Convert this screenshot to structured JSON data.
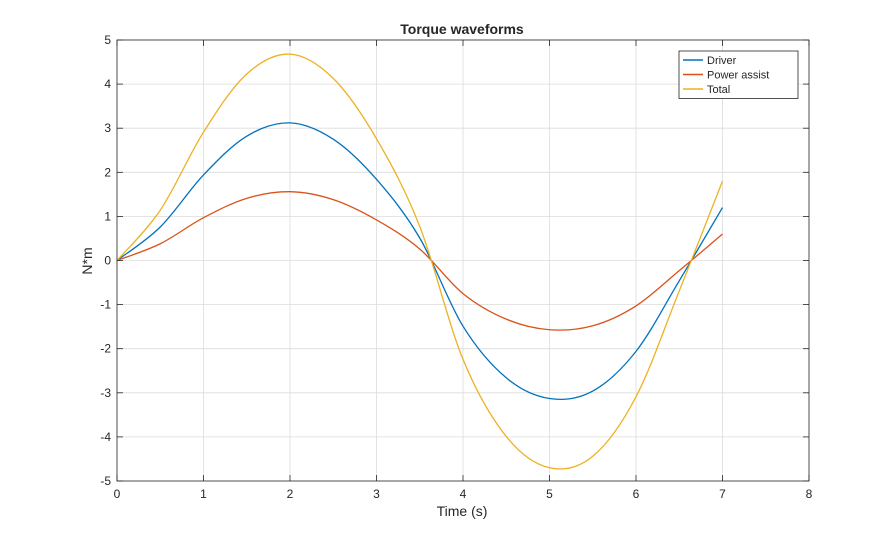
{
  "chart_data": {
    "type": "line",
    "title": "Torque waveforms",
    "xlabel": "Time (s)",
    "ylabel": "N*m",
    "xlim": [
      0,
      8
    ],
    "ylim": [
      -5,
      5
    ],
    "xticks": [
      0,
      1,
      2,
      3,
      4,
      5,
      6,
      7,
      8
    ],
    "yticks": [
      -5,
      -4,
      -3,
      -2,
      -1,
      0,
      1,
      2,
      3,
      4,
      5
    ],
    "grid": true,
    "legend_location": "top-right",
    "x": [
      0,
      0.5,
      1,
      1.5,
      2,
      2.5,
      3,
      3.5,
      4,
      4.5,
      5,
      5.5,
      6,
      6.5,
      7
    ],
    "series": [
      {
        "name": "Driver",
        "color": "#0072BD",
        "values": [
          0,
          0.76,
          1.94,
          2.82,
          3.12,
          2.75,
          1.84,
          0.51,
          -1.49,
          -2.66,
          -3.13,
          -2.96,
          -2.06,
          -0.46,
          1.2
        ]
      },
      {
        "name": "Power assist",
        "color": "#D95319",
        "values": [
          0,
          0.38,
          0.97,
          1.41,
          1.56,
          1.38,
          0.92,
          0.26,
          -0.75,
          -1.33,
          -1.57,
          -1.48,
          -1.03,
          -0.23,
          0.6
        ]
      },
      {
        "name": "Total",
        "color": "#EDB120",
        "values": [
          0,
          1.14,
          2.91,
          4.23,
          4.68,
          4.13,
          2.76,
          0.77,
          -2.24,
          -3.99,
          -4.7,
          -4.44,
          -3.09,
          -0.69,
          1.8
        ]
      }
    ]
  }
}
